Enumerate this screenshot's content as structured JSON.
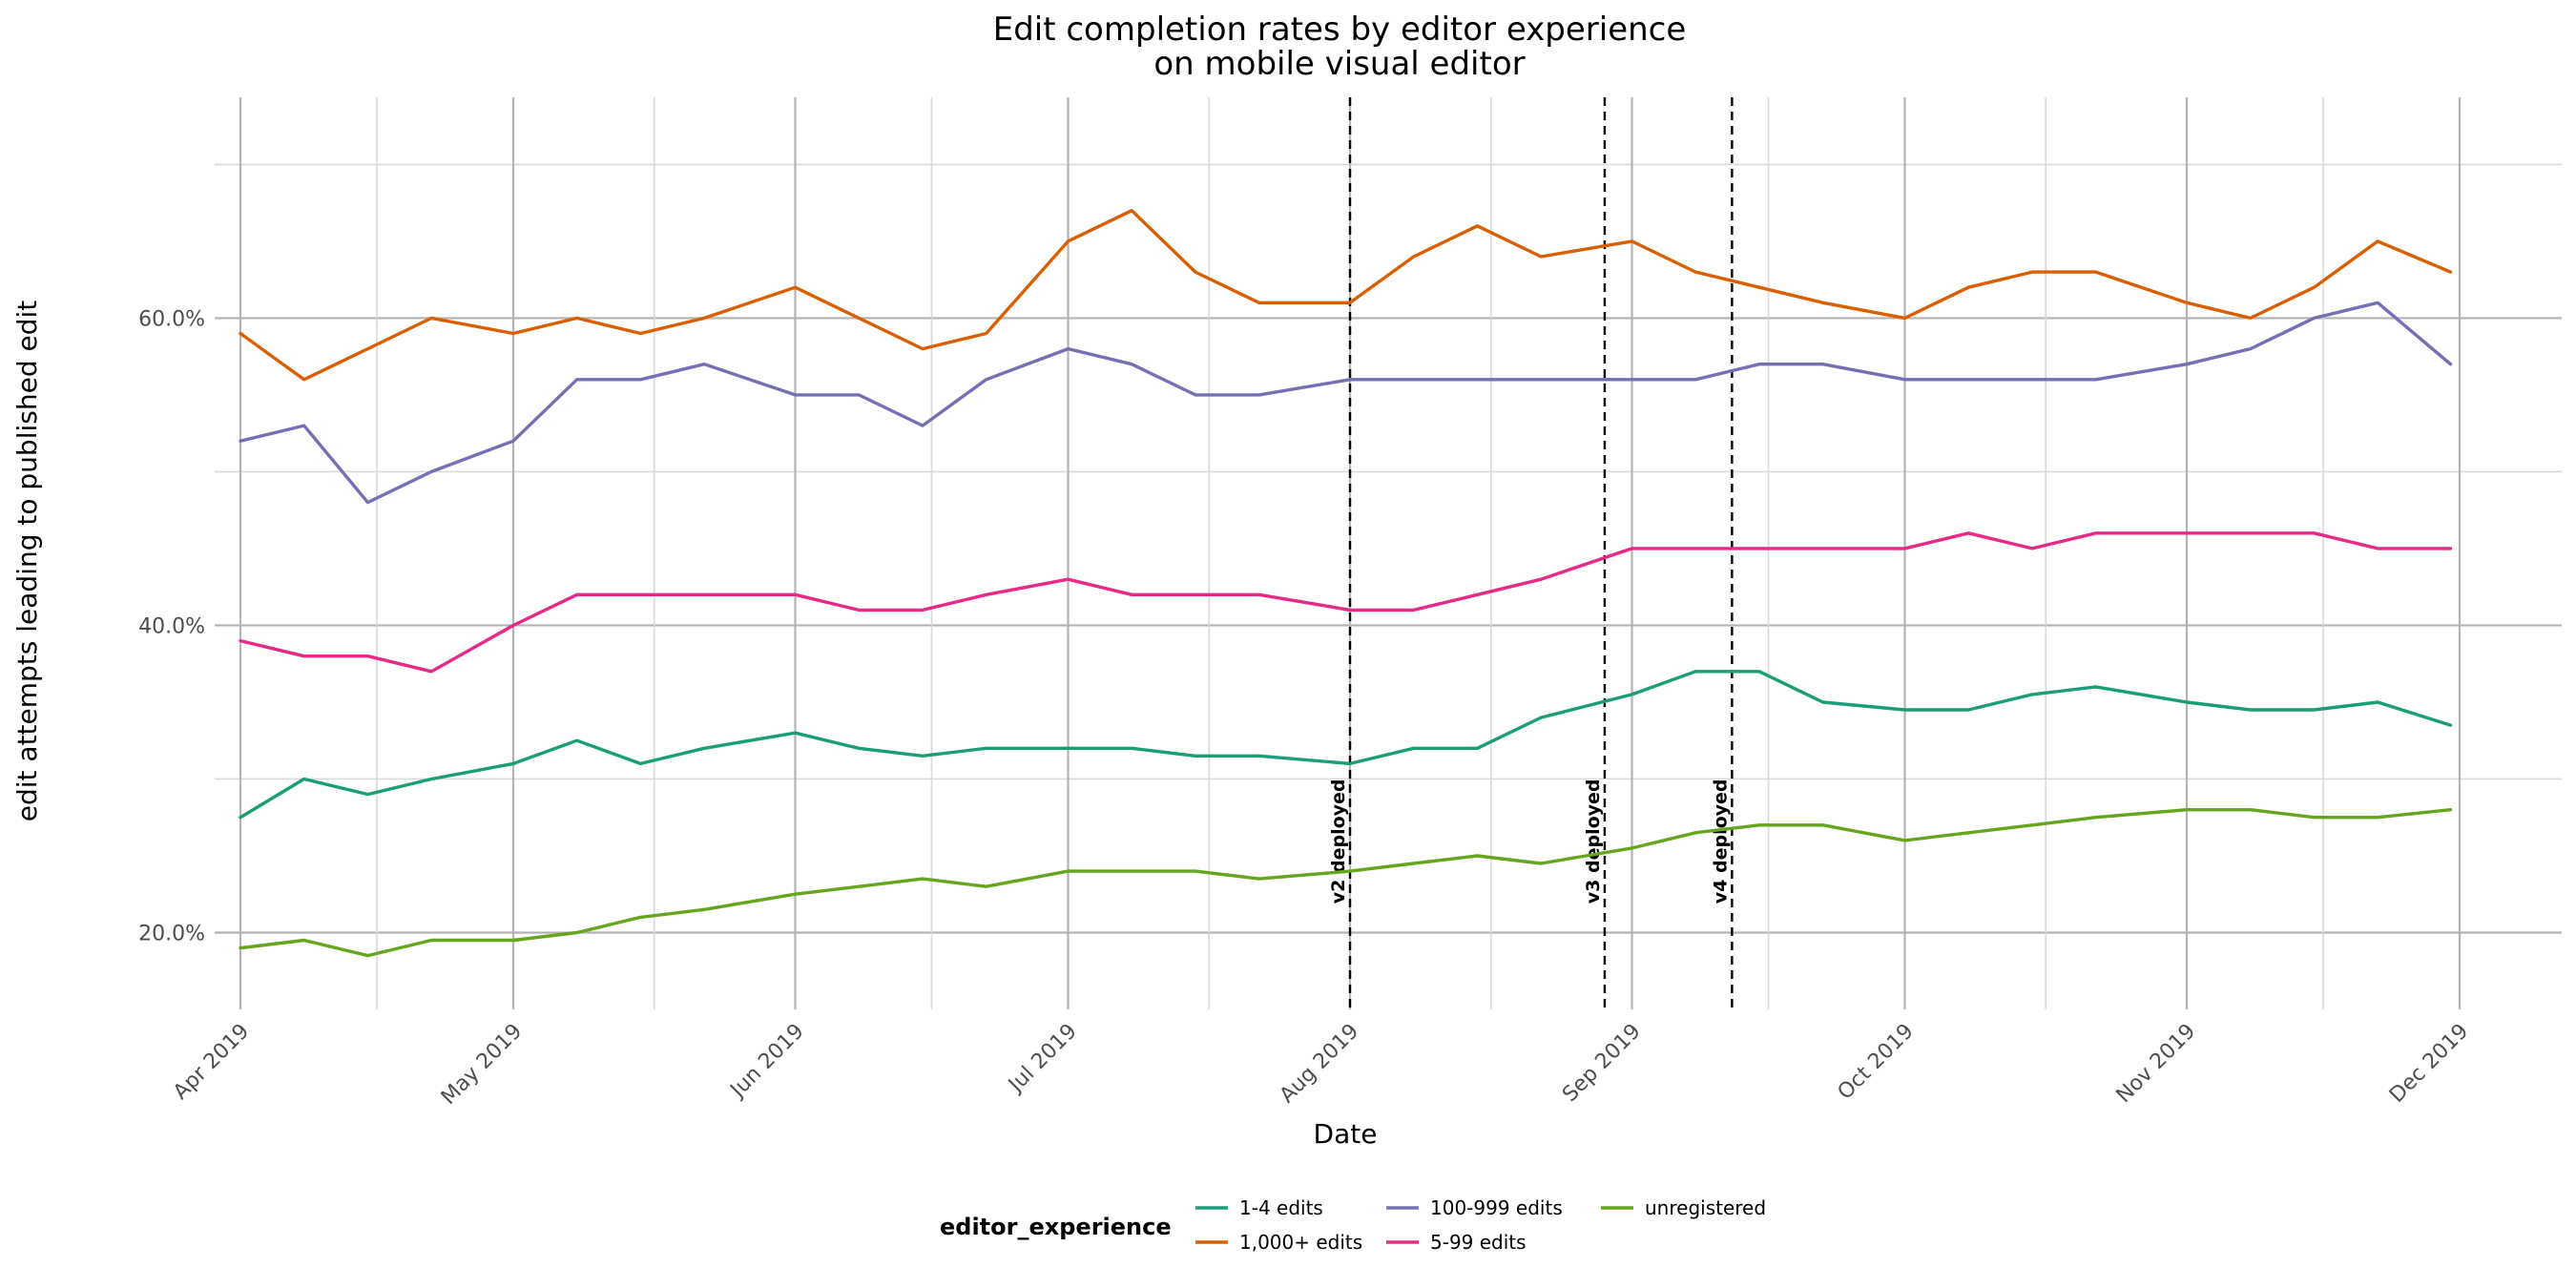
{
  "chart_data": {
    "type": "line",
    "title_line1": "Edit completion rates by editor experience",
    "title_line2": "on mobile visual editor",
    "xlabel": "Date",
    "ylabel": "edit attempts leading to published edit",
    "x_range": [
      "2019-04-01",
      "2019-12-01"
    ],
    "ylim": [
      0.15,
      0.74
    ],
    "y_ticks": [
      0.2,
      0.4,
      0.6
    ],
    "y_tick_labels": [
      "20.0%",
      "40.0%",
      "60.0%"
    ],
    "x_ticks": [
      "2019-04-01",
      "2019-05-01",
      "2019-06-01",
      "2019-07-01",
      "2019-08-01",
      "2019-09-01",
      "2019-10-01",
      "2019-11-01",
      "2019-12-01"
    ],
    "x_tick_labels": [
      "Apr 2019",
      "May 2019",
      "Jun 2019",
      "Jul 2019",
      "Aug 2019",
      "Sep 2019",
      "Oct 2019",
      "Nov 2019",
      "Dec 2019"
    ],
    "grid": true,
    "legend_position": "bottom",
    "legend_title": "editor_experience",
    "deployments": [
      {
        "date": "2019-08-01",
        "label": "v2 deployed"
      },
      {
        "date": "2019-08-29",
        "label": "v3 deployed"
      },
      {
        "date": "2019-09-12",
        "label": "v4 deployed"
      }
    ],
    "series": [
      {
        "name": "1-4 edits",
        "color": "#1b9e77",
        "points": [
          [
            "2019-04-01",
            0.275
          ],
          [
            "2019-04-08",
            0.3
          ],
          [
            "2019-04-15",
            0.29
          ],
          [
            "2019-04-22",
            0.3
          ],
          [
            "2019-05-01",
            0.31
          ],
          [
            "2019-05-08",
            0.325
          ],
          [
            "2019-05-15",
            0.31
          ],
          [
            "2019-05-22",
            0.32
          ],
          [
            "2019-06-01",
            0.33
          ],
          [
            "2019-06-08",
            0.32
          ],
          [
            "2019-06-15",
            0.315
          ],
          [
            "2019-06-22",
            0.32
          ],
          [
            "2019-07-01",
            0.32
          ],
          [
            "2019-07-08",
            0.32
          ],
          [
            "2019-07-15",
            0.315
          ],
          [
            "2019-07-22",
            0.315
          ],
          [
            "2019-08-01",
            0.31
          ],
          [
            "2019-08-08",
            0.32
          ],
          [
            "2019-08-15",
            0.32
          ],
          [
            "2019-08-22",
            0.34
          ],
          [
            "2019-09-01",
            0.355
          ],
          [
            "2019-09-08",
            0.37
          ],
          [
            "2019-09-15",
            0.37
          ],
          [
            "2019-09-22",
            0.35
          ],
          [
            "2019-10-01",
            0.345
          ],
          [
            "2019-10-08",
            0.345
          ],
          [
            "2019-10-15",
            0.355
          ],
          [
            "2019-10-22",
            0.36
          ],
          [
            "2019-11-01",
            0.35
          ],
          [
            "2019-11-08",
            0.345
          ],
          [
            "2019-11-15",
            0.345
          ],
          [
            "2019-11-22",
            0.35
          ],
          [
            "2019-11-30",
            0.335
          ]
        ]
      },
      {
        "name": "1,000+ edits",
        "color": "#d95f02",
        "points": [
          [
            "2019-04-01",
            0.59
          ],
          [
            "2019-04-08",
            0.56
          ],
          [
            "2019-04-15",
            0.58
          ],
          [
            "2019-04-22",
            0.6
          ],
          [
            "2019-05-01",
            0.59
          ],
          [
            "2019-05-08",
            0.6
          ],
          [
            "2019-05-15",
            0.59
          ],
          [
            "2019-05-22",
            0.6
          ],
          [
            "2019-06-01",
            0.62
          ],
          [
            "2019-06-08",
            0.6
          ],
          [
            "2019-06-15",
            0.58
          ],
          [
            "2019-06-22",
            0.59
          ],
          [
            "2019-07-01",
            0.65
          ],
          [
            "2019-07-08",
            0.67
          ],
          [
            "2019-07-15",
            0.63
          ],
          [
            "2019-07-22",
            0.61
          ],
          [
            "2019-08-01",
            0.61
          ],
          [
            "2019-08-08",
            0.64
          ],
          [
            "2019-08-15",
            0.66
          ],
          [
            "2019-08-22",
            0.64
          ],
          [
            "2019-09-01",
            0.65
          ],
          [
            "2019-09-08",
            0.63
          ],
          [
            "2019-09-15",
            0.62
          ],
          [
            "2019-09-22",
            0.61
          ],
          [
            "2019-10-01",
            0.6
          ],
          [
            "2019-10-08",
            0.62
          ],
          [
            "2019-10-15",
            0.63
          ],
          [
            "2019-10-22",
            0.63
          ],
          [
            "2019-11-01",
            0.61
          ],
          [
            "2019-11-08",
            0.6
          ],
          [
            "2019-11-15",
            0.62
          ],
          [
            "2019-11-22",
            0.65
          ],
          [
            "2019-11-30",
            0.63
          ]
        ]
      },
      {
        "name": "100-999 edits",
        "color": "#7570b3",
        "points": [
          [
            "2019-04-01",
            0.52
          ],
          [
            "2019-04-08",
            0.53
          ],
          [
            "2019-04-15",
            0.48
          ],
          [
            "2019-04-22",
            0.5
          ],
          [
            "2019-05-01",
            0.52
          ],
          [
            "2019-05-08",
            0.56
          ],
          [
            "2019-05-15",
            0.56
          ],
          [
            "2019-05-22",
            0.57
          ],
          [
            "2019-06-01",
            0.55
          ],
          [
            "2019-06-08",
            0.55
          ],
          [
            "2019-06-15",
            0.53
          ],
          [
            "2019-06-22",
            0.56
          ],
          [
            "2019-07-01",
            0.58
          ],
          [
            "2019-07-08",
            0.57
          ],
          [
            "2019-07-15",
            0.55
          ],
          [
            "2019-07-22",
            0.55
          ],
          [
            "2019-08-01",
            0.56
          ],
          [
            "2019-08-08",
            0.56
          ],
          [
            "2019-08-15",
            0.56
          ],
          [
            "2019-08-22",
            0.56
          ],
          [
            "2019-09-01",
            0.56
          ],
          [
            "2019-09-08",
            0.56
          ],
          [
            "2019-09-15",
            0.57
          ],
          [
            "2019-09-22",
            0.57
          ],
          [
            "2019-10-01",
            0.56
          ],
          [
            "2019-10-08",
            0.56
          ],
          [
            "2019-10-15",
            0.56
          ],
          [
            "2019-10-22",
            0.56
          ],
          [
            "2019-11-01",
            0.57
          ],
          [
            "2019-11-08",
            0.58
          ],
          [
            "2019-11-15",
            0.6
          ],
          [
            "2019-11-22",
            0.61
          ],
          [
            "2019-11-30",
            0.57
          ]
        ]
      },
      {
        "name": "5-99 edits",
        "color": "#e7298a",
        "points": [
          [
            "2019-04-01",
            0.39
          ],
          [
            "2019-04-08",
            0.38
          ],
          [
            "2019-04-15",
            0.38
          ],
          [
            "2019-04-22",
            0.37
          ],
          [
            "2019-05-01",
            0.4
          ],
          [
            "2019-05-08",
            0.42
          ],
          [
            "2019-05-15",
            0.42
          ],
          [
            "2019-05-22",
            0.42
          ],
          [
            "2019-06-01",
            0.42
          ],
          [
            "2019-06-08",
            0.41
          ],
          [
            "2019-06-15",
            0.41
          ],
          [
            "2019-06-22",
            0.42
          ],
          [
            "2019-07-01",
            0.43
          ],
          [
            "2019-07-08",
            0.42
          ],
          [
            "2019-07-15",
            0.42
          ],
          [
            "2019-07-22",
            0.42
          ],
          [
            "2019-08-01",
            0.41
          ],
          [
            "2019-08-08",
            0.41
          ],
          [
            "2019-08-15",
            0.42
          ],
          [
            "2019-08-22",
            0.43
          ],
          [
            "2019-09-01",
            0.45
          ],
          [
            "2019-09-08",
            0.45
          ],
          [
            "2019-09-15",
            0.45
          ],
          [
            "2019-09-22",
            0.45
          ],
          [
            "2019-10-01",
            0.45
          ],
          [
            "2019-10-08",
            0.46
          ],
          [
            "2019-10-15",
            0.45
          ],
          [
            "2019-10-22",
            0.46
          ],
          [
            "2019-11-01",
            0.46
          ],
          [
            "2019-11-08",
            0.46
          ],
          [
            "2019-11-15",
            0.46
          ],
          [
            "2019-11-22",
            0.45
          ],
          [
            "2019-11-30",
            0.45
          ]
        ]
      },
      {
        "name": "unregistered",
        "color": "#66a61e",
        "points": [
          [
            "2019-04-01",
            0.19
          ],
          [
            "2019-04-08",
            0.195
          ],
          [
            "2019-04-15",
            0.185
          ],
          [
            "2019-04-22",
            0.195
          ],
          [
            "2019-05-01",
            0.195
          ],
          [
            "2019-05-08",
            0.2
          ],
          [
            "2019-05-15",
            0.21
          ],
          [
            "2019-05-22",
            0.215
          ],
          [
            "2019-06-01",
            0.225
          ],
          [
            "2019-06-08",
            0.23
          ],
          [
            "2019-06-15",
            0.235
          ],
          [
            "2019-06-22",
            0.23
          ],
          [
            "2019-07-01",
            0.24
          ],
          [
            "2019-07-08",
            0.24
          ],
          [
            "2019-07-15",
            0.24
          ],
          [
            "2019-07-22",
            0.235
          ],
          [
            "2019-08-01",
            0.24
          ],
          [
            "2019-08-08",
            0.245
          ],
          [
            "2019-08-15",
            0.25
          ],
          [
            "2019-08-22",
            0.245
          ],
          [
            "2019-09-01",
            0.255
          ],
          [
            "2019-09-08",
            0.265
          ],
          [
            "2019-09-15",
            0.27
          ],
          [
            "2019-09-22",
            0.27
          ],
          [
            "2019-10-01",
            0.26
          ],
          [
            "2019-10-08",
            0.265
          ],
          [
            "2019-10-15",
            0.27
          ],
          [
            "2019-10-22",
            0.275
          ],
          [
            "2019-11-01",
            0.28
          ],
          [
            "2019-11-08",
            0.28
          ],
          [
            "2019-11-15",
            0.275
          ],
          [
            "2019-11-22",
            0.275
          ],
          [
            "2019-11-30",
            0.28
          ]
        ]
      }
    ],
    "legend_order": [
      "1-4 edits",
      "1,000+ edits",
      "100-999 edits",
      "5-99 edits",
      "unregistered"
    ]
  }
}
